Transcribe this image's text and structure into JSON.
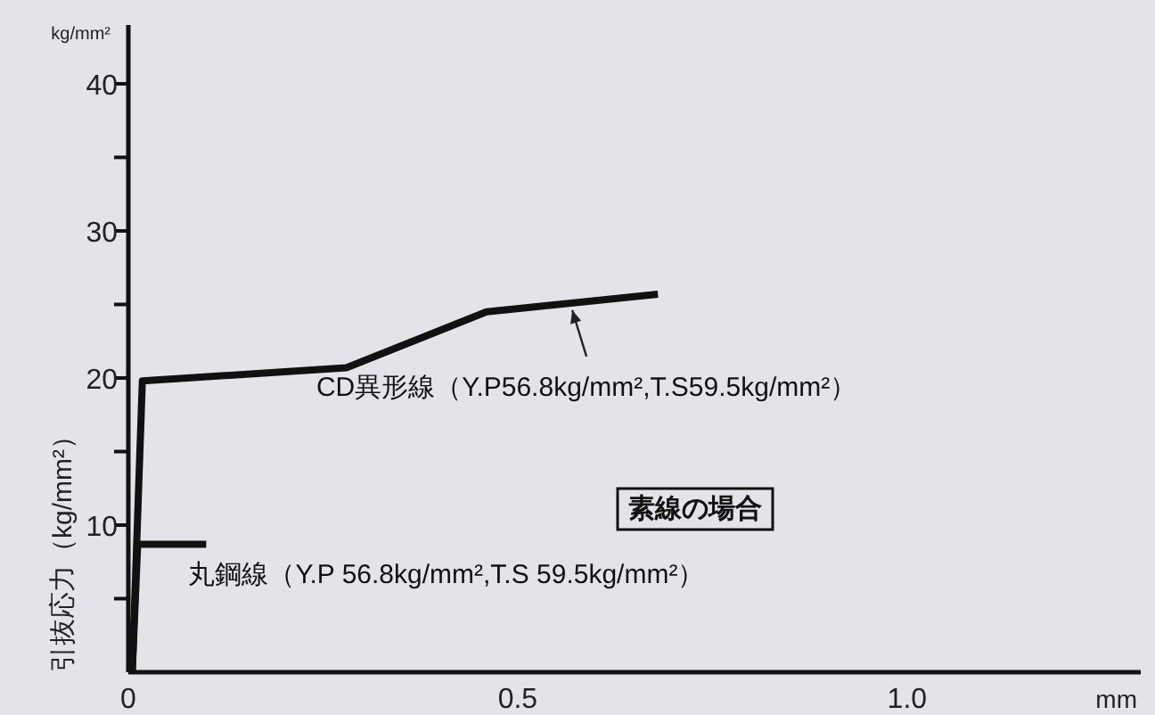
{
  "chart_data": {
    "type": "line",
    "ylabel": "引抜応力（kg/mm²）",
    "xlabel": "mm",
    "xlim": [
      0,
      1.3
    ],
    "ylim": [
      0,
      44
    ],
    "xticks": [
      0,
      0.5,
      {
        "value": 1.0,
        "label": "1.0"
      }
    ],
    "yticks": [
      {
        "value": 5,
        "label": null
      },
      10,
      {
        "value": 15,
        "label": null
      },
      20,
      {
        "value": 25,
        "label": null
      },
      30,
      {
        "value": 35,
        "label": null
      },
      40
    ],
    "tick_labels": "xy",
    "grid": false,
    "marker": "none",
    "line_style": "solid",
    "series": [
      {
        "name": "CD異形線（Y.P56.8kg/mm²,T.S59.5kg/mm²）",
        "color": "#111111",
        "x": [
          0.005,
          0.018,
          0.28,
          0.46,
          0.68
        ],
        "values": [
          0,
          19.8,
          20.7,
          24.5,
          25.7
        ]
      },
      {
        "name": "丸鋼線（Y.P 56.8kg/mm²,T.S 59.5kg/mm²）",
        "color": "#111111",
        "x": [
          0.005,
          0.012,
          0.1
        ],
        "values": [
          0,
          8.7,
          8.7
        ]
      }
    ],
    "annotations": [
      "kg/mm²",
      "素線の場合"
    ]
  }
}
